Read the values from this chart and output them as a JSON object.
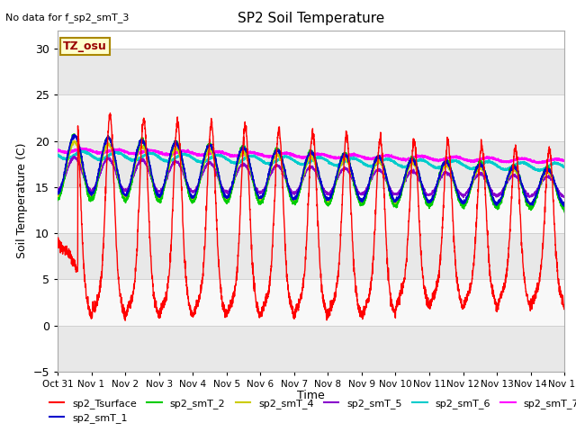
{
  "title": "SP2 Soil Temperature",
  "ylabel": "Soil Temperature (C)",
  "xlabel": "Time",
  "no_data_text": "No data for f_sp2_smT_3",
  "tz_label": "TZ_osu",
  "ylim": [
    -5,
    32
  ],
  "yticks": [
    -5,
    0,
    5,
    10,
    15,
    20,
    25,
    30
  ],
  "xlim": [
    0,
    15
  ],
  "xtick_labels": [
    "Oct 31",
    "Nov 1",
    "Nov 2",
    "Nov 3",
    "Nov 4",
    "Nov 5",
    "Nov 6",
    "Nov 7",
    "Nov 8",
    "Nov 9",
    "Nov 10",
    "Nov 11",
    "Nov 12",
    "Nov 13",
    "Nov 14",
    "Nov 15"
  ],
  "plot_bg_color": "#ffffff",
  "band_color": "#e8e8e8",
  "series_colors": {
    "sp2_Tsurface": "#ff0000",
    "sp2_smT_1": "#0000cc",
    "sp2_smT_2": "#00cc00",
    "sp2_smT_4": "#cccc00",
    "sp2_smT_5": "#8800cc",
    "sp2_smT_6": "#00cccc",
    "sp2_smT_7": "#ff00ff"
  },
  "legend_entries": [
    "sp2_Tsurface",
    "sp2_smT_1",
    "sp2_smT_2",
    "sp2_smT_4",
    "sp2_smT_5",
    "sp2_smT_6",
    "sp2_smT_7"
  ]
}
